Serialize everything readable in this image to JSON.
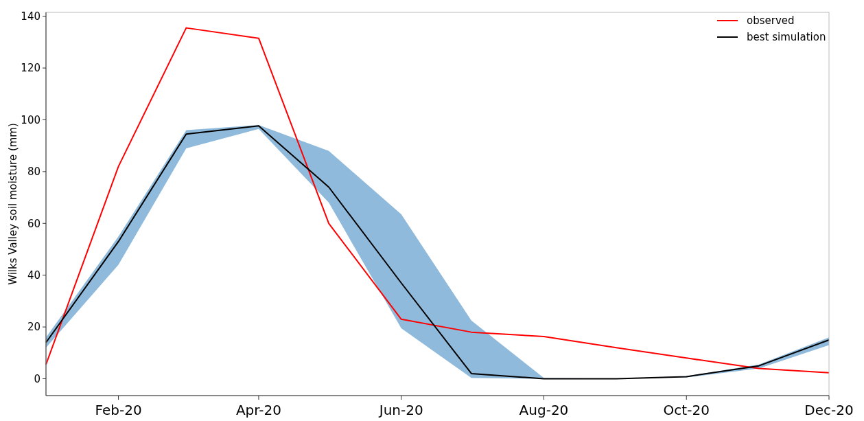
{
  "chart_data": {
    "type": "line",
    "ylabel": "Wilks Valley soil moisture (mm)",
    "x": [
      "2020-01-01",
      "2020-02-01",
      "2020-03-01",
      "2020-04-01",
      "2020-05-01",
      "2020-06-01",
      "2020-07-01",
      "2020-08-01",
      "2020-09-01",
      "2020-10-01",
      "2020-11-01",
      "2020-12-01"
    ],
    "series": [
      {
        "name": "observed",
        "color": "#ff0000",
        "values": [
          5.5,
          82,
          135.5,
          131.5,
          60,
          23,
          18,
          16.3,
          12,
          8,
          4,
          2.3
        ]
      },
      {
        "name": "best simulation",
        "color": "#000000",
        "values": [
          14,
          53,
          94.5,
          97.7,
          74,
          37,
          2,
          0,
          0,
          0.8,
          5,
          15
        ],
        "lower": [
          12,
          44,
          89,
          96.5,
          68,
          19.5,
          0.3,
          0,
          0,
          0.5,
          4,
          13
        ],
        "upper": [
          16,
          55,
          96,
          98,
          88,
          63.5,
          22.5,
          0.3,
          0,
          1,
          5.5,
          16
        ]
      }
    ],
    "xlim": [
      "2020-01-01",
      "2020-12-01"
    ],
    "xticks": [
      {
        "value": "2020-02-01",
        "label": "Feb-20"
      },
      {
        "value": "2020-04-01",
        "label": "Apr-20"
      },
      {
        "value": "2020-06-01",
        "label": "Jun-20"
      },
      {
        "value": "2020-08-01",
        "label": "Aug-20"
      },
      {
        "value": "2020-10-01",
        "label": "Oct-20"
      },
      {
        "value": "2020-12-01",
        "label": "Dec-20"
      }
    ],
    "ylim": [
      -6.5,
      141.5
    ],
    "yticks": [
      0,
      20,
      40,
      60,
      80,
      100,
      120,
      140
    ],
    "legend": "top right",
    "grid": false,
    "marker": "none",
    "line_style": "solid"
  }
}
